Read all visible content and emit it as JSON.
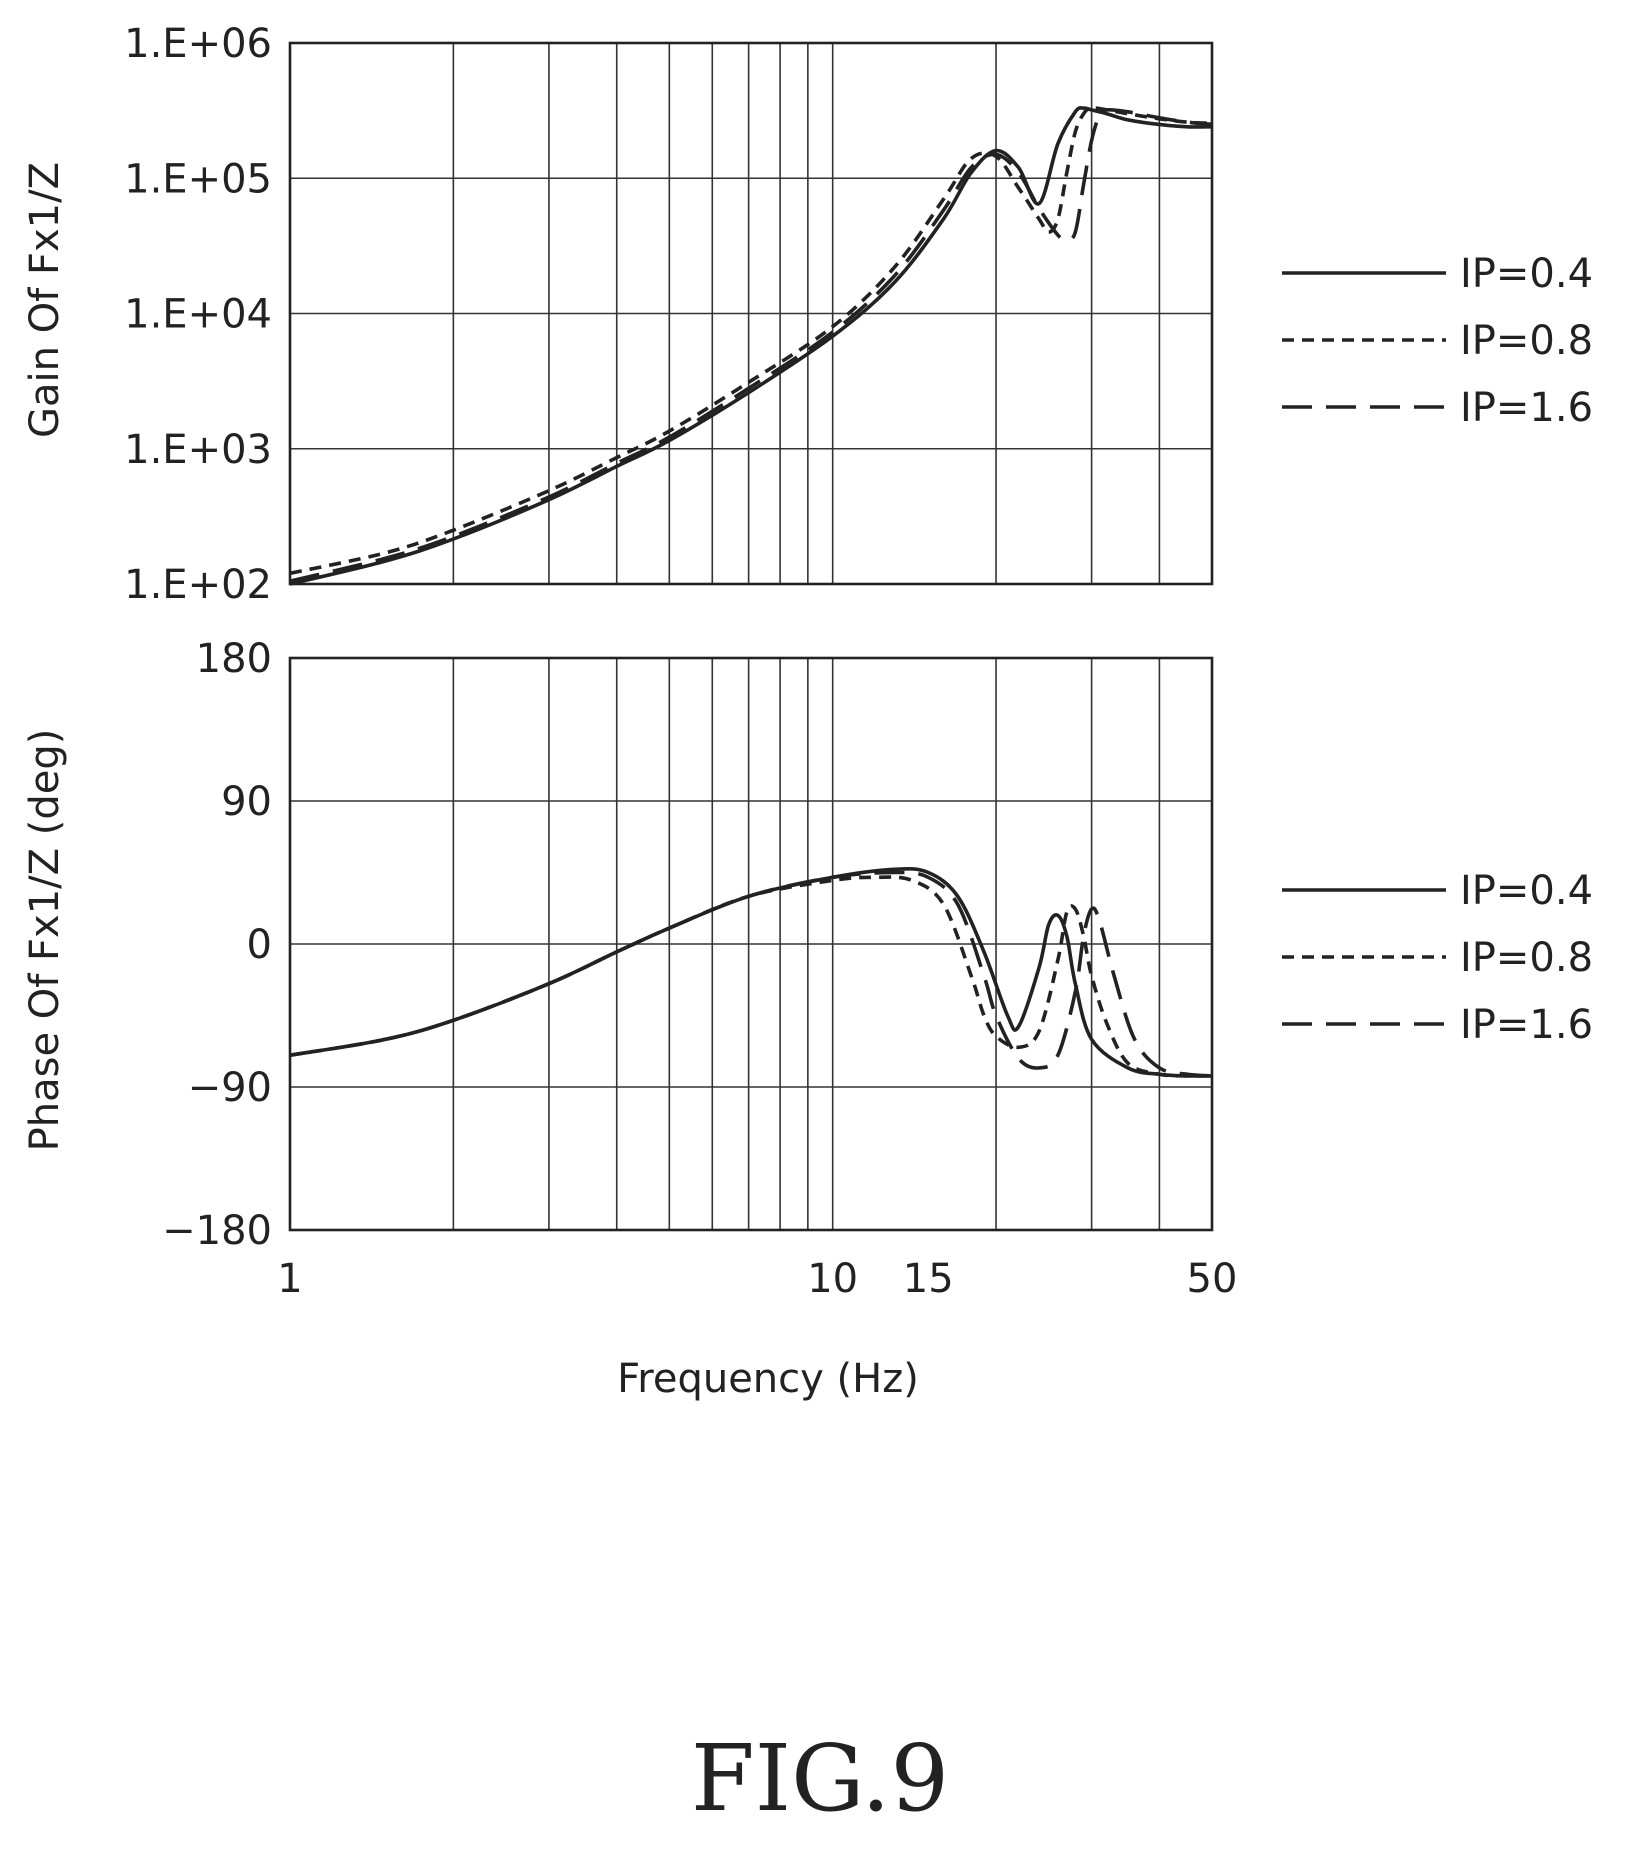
{
  "figure_label": "FIG.9",
  "chart_data": [
    {
      "type": "line",
      "panel": "gain",
      "title": "",
      "ylabel": "Gain Of Fx1/Z",
      "xlabel": "",
      "x_scale": "log",
      "y_scale": "log",
      "xlim": [
        1,
        50
      ],
      "ylim": [
        100,
        1000000
      ],
      "yticks": [
        100,
        1000,
        10000,
        100000,
        1000000
      ],
      "yticklabels": [
        "1.E+02",
        "1.E+03",
        "1.E+04",
        "1.E+05",
        "1.E+06"
      ],
      "grid": true,
      "legend": "right",
      "series": [
        {
          "name": "IP=0.4",
          "style": "solid",
          "x": [
            1,
            1.5,
            2,
            3,
            4,
            5,
            7,
            10,
            13,
            16,
            18,
            20,
            22,
            24,
            26,
            28,
            29,
            30,
            32,
            35,
            40,
            45,
            50
          ],
          "y": [
            100,
            148,
            215,
            420,
            740,
            1150,
            2600,
            6800,
            17000,
            50000,
            110000,
            160000,
            120000,
            65000,
            180000,
            310000,
            330000,
            320000,
            300000,
            270000,
            250000,
            240000,
            240000
          ]
        },
        {
          "name": "IP=0.8",
          "style": "short-dash",
          "x": [
            1,
            1.5,
            2,
            3,
            4,
            5,
            7,
            10,
            13,
            16,
            18,
            20,
            22,
            24,
            25,
            26,
            27,
            28,
            29,
            30,
            32,
            35,
            40,
            45,
            50
          ],
          "y": [
            120,
            170,
            250,
            490,
            860,
            1350,
            3100,
            8000,
            22000,
            70000,
            140000,
            145000,
            85000,
            50000,
            40000,
            50000,
            110000,
            220000,
            300000,
            330000,
            320000,
            300000,
            275000,
            260000,
            255000
          ]
        },
        {
          "name": "IP=1.6",
          "style": "long-dash",
          "x": [
            1,
            1.5,
            2,
            3,
            4,
            5,
            7,
            10,
            13,
            16,
            18,
            20,
            22,
            24,
            26,
            27,
            28,
            29,
            30,
            31,
            32,
            35,
            40,
            45,
            50
          ],
          "y": [
            105,
            155,
            225,
            440,
            780,
            1220,
            2800,
            7300,
            19000,
            58000,
            120000,
            150000,
            110000,
            60000,
            38000,
            35000,
            40000,
            90000,
            190000,
            290000,
            320000,
            310000,
            280000,
            260000,
            250000
          ]
        }
      ]
    },
    {
      "type": "line",
      "panel": "phase",
      "title": "",
      "ylabel": "Phase Of Fx1/Z (deg)",
      "xlabel": "Frequency (Hz)",
      "x_scale": "log",
      "xlim": [
        1,
        50
      ],
      "ylim": [
        -180,
        180
      ],
      "yticks": [
        -180,
        -90,
        0,
        90,
        180
      ],
      "yticklabels": [
        "−180",
        "−90",
        "0",
        "90",
        "180"
      ],
      "xticks": [
        1,
        10,
        15,
        50
      ],
      "xticklabels": [
        "1",
        "10",
        "15",
        "50"
      ],
      "grid": true,
      "legend": "right",
      "series": [
        {
          "name": "IP=0.4",
          "style": "solid",
          "x": [
            1,
            1.5,
            2,
            3,
            4,
            5,
            7,
            10,
            13,
            15,
            17,
            19,
            21,
            22,
            24,
            25,
            26,
            27,
            28,
            30,
            35,
            40,
            45,
            50
          ],
          "y": [
            -70,
            -60,
            -48,
            -25,
            -5,
            10,
            30,
            42,
            47,
            45,
            30,
            -5,
            -45,
            -52,
            -15,
            12,
            18,
            5,
            -25,
            -60,
            -78,
            -82,
            -83,
            -83
          ]
        },
        {
          "name": "IP=0.8",
          "style": "short-dash",
          "x": [
            1,
            1.5,
            2,
            3,
            4,
            5,
            7,
            10,
            12,
            14,
            16,
            18,
            19,
            20,
            22,
            24,
            26,
            27,
            28,
            29,
            30,
            32,
            35,
            40,
            45,
            50
          ],
          "y": [
            -70,
            -60,
            -48,
            -25,
            -5,
            10,
            30,
            40,
            42,
            40,
            25,
            -20,
            -45,
            -58,
            -65,
            -55,
            -10,
            20,
            22,
            5,
            -20,
            -50,
            -75,
            -82,
            -83,
            -83
          ]
        },
        {
          "name": "IP=1.6",
          "style": "long-dash",
          "x": [
            1,
            1.5,
            2,
            3,
            4,
            5,
            7,
            10,
            13,
            15,
            17,
            19,
            20,
            22,
            24,
            26,
            28,
            29,
            30,
            31,
            33,
            36,
            40,
            45,
            50
          ],
          "y": [
            -70,
            -60,
            -48,
            -25,
            -5,
            10,
            30,
            42,
            45,
            42,
            25,
            -20,
            -45,
            -72,
            -78,
            -70,
            -30,
            5,
            22,
            15,
            -20,
            -60,
            -78,
            -82,
            -83
          ]
        }
      ]
    }
  ]
}
